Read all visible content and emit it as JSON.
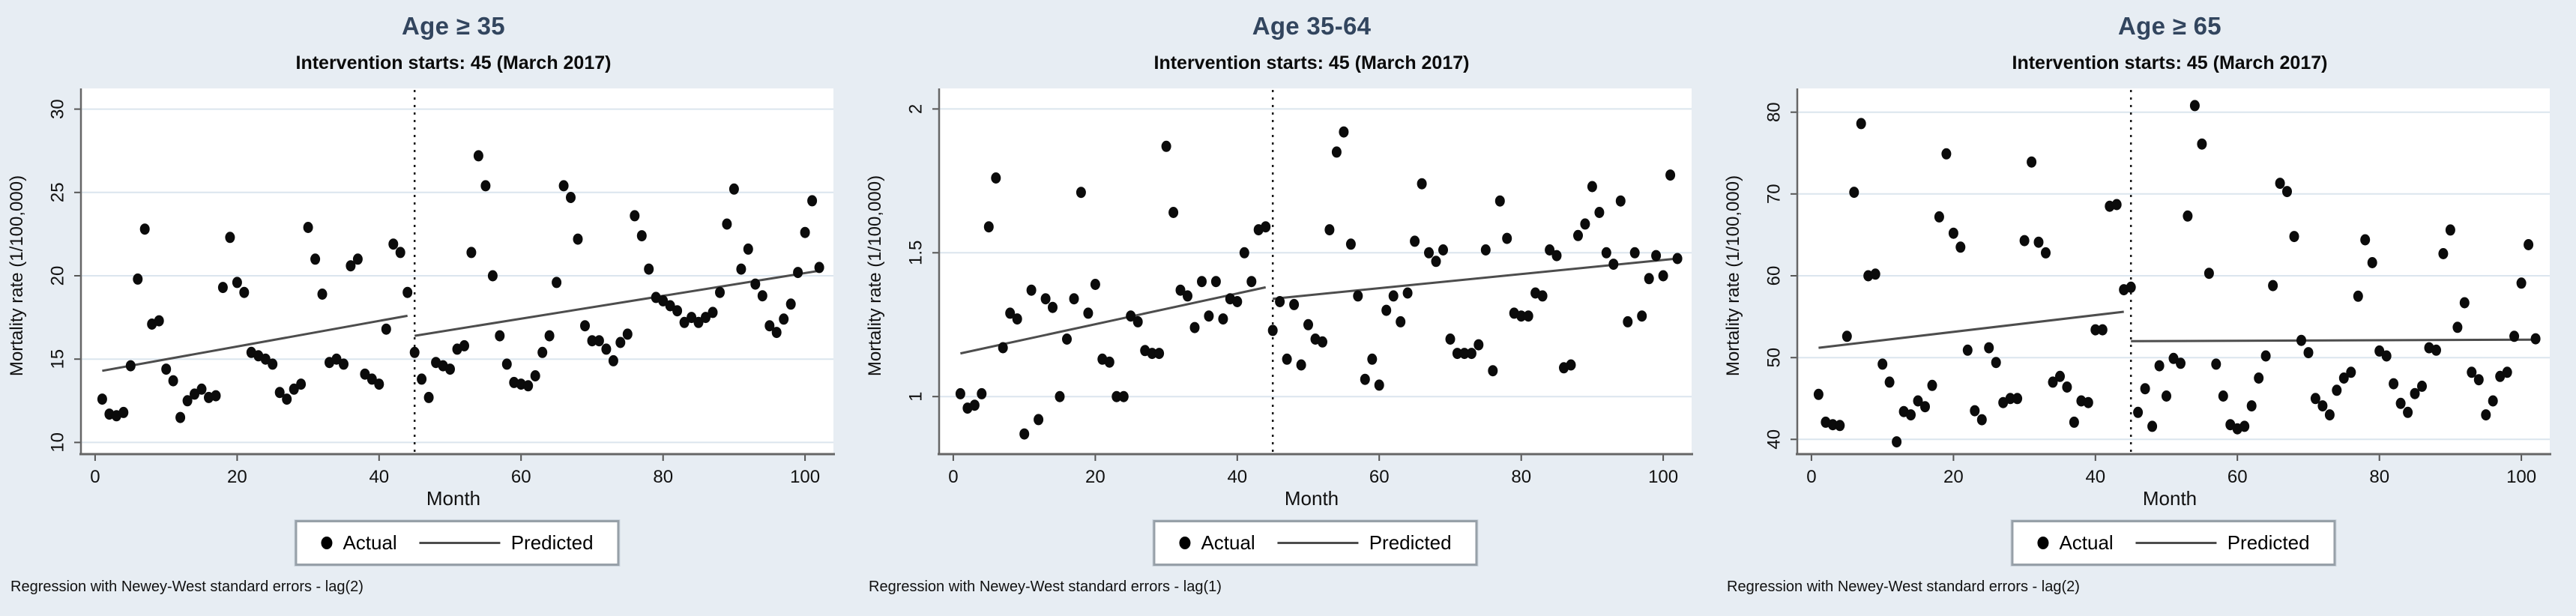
{
  "figure": {
    "background_color": "#e7edf3",
    "title_color": "#32455e",
    "point_color": "#0b0b0b",
    "predicted_line_color": "#4d4d4d",
    "gridline_color": "#dbe5ee"
  },
  "legend": {
    "actual_label": "Actual",
    "predicted_label": "Predicted"
  },
  "chart_data": [
    {
      "type": "scatter",
      "title": "Age ≥ 35",
      "subtitle": "Intervention starts: 45 (March 2017)",
      "note": "Regression with Newey-West standard errors - lag(2)",
      "xlabel": "Month",
      "ylabel": "Mortality rate (1/100,000)",
      "x_ticks": [
        0,
        20,
        40,
        60,
        80,
        100
      ],
      "y_ticks": [
        10,
        15,
        20,
        25,
        30
      ],
      "x_range": [
        -2,
        104
      ],
      "y_range": [
        9.3,
        30.7
      ],
      "grid": "horizontal",
      "legend_position": "bottom-center",
      "intervention_x": 45,
      "series": [
        {
          "name": "Predicted (pre-intervention)",
          "line": [
            [
              1,
              14.3
            ],
            [
              44,
              17.6
            ]
          ]
        },
        {
          "name": "Predicted (post-intervention)",
          "line": [
            [
              45,
              16.4
            ],
            [
              102,
              20.3
            ]
          ]
        }
      ],
      "points": [
        [
          1,
          12.6
        ],
        [
          2,
          11.7
        ],
        [
          3,
          11.6
        ],
        [
          4,
          11.8
        ],
        [
          5,
          14.6
        ],
        [
          6,
          19.8
        ],
        [
          7,
          22.8
        ],
        [
          8,
          17.1
        ],
        [
          9,
          17.3
        ],
        [
          10,
          14.4
        ],
        [
          11,
          13.7
        ],
        [
          12,
          11.5
        ],
        [
          13,
          12.5
        ],
        [
          14,
          12.9
        ],
        [
          15,
          13.2
        ],
        [
          16,
          12.7
        ],
        [
          17,
          12.8
        ],
        [
          18,
          19.3
        ],
        [
          19,
          22.3
        ],
        [
          20,
          19.6
        ],
        [
          21,
          19.0
        ],
        [
          22,
          15.4
        ],
        [
          23,
          15.2
        ],
        [
          24,
          15.0
        ],
        [
          25,
          14.7
        ],
        [
          26,
          13.0
        ],
        [
          27,
          12.6
        ],
        [
          28,
          13.2
        ],
        [
          29,
          13.5
        ],
        [
          30,
          22.9
        ],
        [
          31,
          21.0
        ],
        [
          32,
          18.9
        ],
        [
          33,
          14.8
        ],
        [
          34,
          15.0
        ],
        [
          35,
          14.7
        ],
        [
          36,
          20.6
        ],
        [
          37,
          21.0
        ],
        [
          38,
          14.1
        ],
        [
          39,
          13.8
        ],
        [
          40,
          13.5
        ],
        [
          41,
          16.8
        ],
        [
          42,
          21.9
        ],
        [
          43,
          21.4
        ],
        [
          44,
          19.0
        ],
        [
          45,
          15.4
        ],
        [
          46,
          13.8
        ],
        [
          47,
          12.7
        ],
        [
          48,
          14.8
        ],
        [
          49,
          14.6
        ],
        [
          50,
          14.4
        ],
        [
          51,
          15.6
        ],
        [
          52,
          15.8
        ],
        [
          53,
          21.4
        ],
        [
          54,
          27.2
        ],
        [
          55,
          25.4
        ],
        [
          56,
          20.0
        ],
        [
          57,
          16.4
        ],
        [
          58,
          14.7
        ],
        [
          59,
          13.6
        ],
        [
          60,
          13.5
        ],
        [
          61,
          13.4
        ],
        [
          62,
          14.0
        ],
        [
          63,
          15.4
        ],
        [
          64,
          16.4
        ],
        [
          65,
          19.6
        ],
        [
          66,
          25.4
        ],
        [
          67,
          24.7
        ],
        [
          68,
          22.2
        ],
        [
          69,
          17.0
        ],
        [
          70,
          16.1
        ],
        [
          71,
          16.1
        ],
        [
          72,
          15.6
        ],
        [
          73,
          14.9
        ],
        [
          74,
          16.0
        ],
        [
          75,
          16.5
        ],
        [
          76,
          23.6
        ],
        [
          77,
          22.4
        ],
        [
          78,
          20.4
        ],
        [
          79,
          18.7
        ],
        [
          80,
          18.5
        ],
        [
          81,
          18.2
        ],
        [
          82,
          17.9
        ],
        [
          83,
          17.2
        ],
        [
          84,
          17.5
        ],
        [
          85,
          17.2
        ],
        [
          86,
          17.5
        ],
        [
          87,
          17.8
        ],
        [
          88,
          19.0
        ],
        [
          89,
          23.1
        ],
        [
          90,
          25.2
        ],
        [
          91,
          20.4
        ],
        [
          92,
          21.6
        ],
        [
          93,
          19.5
        ],
        [
          94,
          18.8
        ],
        [
          95,
          17.0
        ],
        [
          96,
          16.6
        ],
        [
          97,
          17.4
        ],
        [
          98,
          18.3
        ],
        [
          99,
          20.2
        ],
        [
          100,
          22.6
        ],
        [
          101,
          24.5
        ],
        [
          102,
          20.5
        ]
      ]
    },
    {
      "type": "scatter",
      "title": "Age 35-64",
      "subtitle": "Intervention starts: 45 (March 2017)",
      "note": "Regression with Newey-West standard errors - lag(1)",
      "xlabel": "Month",
      "ylabel": "Mortality rate (1/100,000)",
      "x_ticks": [
        0,
        20,
        40,
        60,
        80,
        100
      ],
      "y_ticks": [
        1,
        1.5,
        2
      ],
      "x_range": [
        -2,
        104
      ],
      "y_range": [
        0.8,
        2.04
      ],
      "grid": "horizontal",
      "legend_position": "bottom-center",
      "intervention_x": 45,
      "series": [
        {
          "name": "Predicted (pre-intervention)",
          "line": [
            [
              1,
              1.15
            ],
            [
              44,
              1.38
            ]
          ]
        },
        {
          "name": "Predicted (post-intervention)",
          "line": [
            [
              45,
              1.34
            ],
            [
              102,
              1.48
            ]
          ]
        }
      ],
      "points": [
        [
          1,
          1.01
        ],
        [
          2,
          0.96
        ],
        [
          3,
          0.97
        ],
        [
          4,
          1.01
        ],
        [
          5,
          1.59
        ],
        [
          6,
          1.76
        ],
        [
          7,
          1.17
        ],
        [
          8,
          1.29
        ],
        [
          9,
          1.27
        ],
        [
          10,
          0.87
        ],
        [
          11,
          1.37
        ],
        [
          12,
          0.92
        ],
        [
          13,
          1.34
        ],
        [
          14,
          1.31
        ],
        [
          15,
          1.0
        ],
        [
          16,
          1.2
        ],
        [
          17,
          1.34
        ],
        [
          18,
          1.71
        ],
        [
          19,
          1.29
        ],
        [
          20,
          1.39
        ],
        [
          21,
          1.13
        ],
        [
          22,
          1.12
        ],
        [
          23,
          1.0
        ],
        [
          24,
          1.0
        ],
        [
          25,
          1.28
        ],
        [
          26,
          1.26
        ],
        [
          27,
          1.16
        ],
        [
          28,
          1.15
        ],
        [
          29,
          1.15
        ],
        [
          30,
          1.87
        ],
        [
          31,
          1.64
        ],
        [
          32,
          1.37
        ],
        [
          33,
          1.35
        ],
        [
          34,
          1.24
        ],
        [
          35,
          1.4
        ],
        [
          36,
          1.28
        ],
        [
          37,
          1.4
        ],
        [
          38,
          1.27
        ],
        [
          39,
          1.34
        ],
        [
          40,
          1.33
        ],
        [
          41,
          1.5
        ],
        [
          42,
          1.4
        ],
        [
          43,
          1.58
        ],
        [
          44,
          1.59
        ],
        [
          45,
          1.23
        ],
        [
          46,
          1.33
        ],
        [
          47,
          1.13
        ],
        [
          48,
          1.32
        ],
        [
          49,
          1.11
        ],
        [
          50,
          1.25
        ],
        [
          51,
          1.2
        ],
        [
          52,
          1.19
        ],
        [
          53,
          1.58
        ],
        [
          54,
          1.85
        ],
        [
          55,
          1.92
        ],
        [
          56,
          1.53
        ],
        [
          57,
          1.35
        ],
        [
          58,
          1.06
        ],
        [
          59,
          1.13
        ],
        [
          60,
          1.04
        ],
        [
          61,
          1.3
        ],
        [
          62,
          1.35
        ],
        [
          63,
          1.26
        ],
        [
          64,
          1.36
        ],
        [
          65,
          1.54
        ],
        [
          66,
          1.74
        ],
        [
          67,
          1.5
        ],
        [
          68,
          1.47
        ],
        [
          69,
          1.51
        ],
        [
          70,
          1.2
        ],
        [
          71,
          1.15
        ],
        [
          72,
          1.15
        ],
        [
          73,
          1.15
        ],
        [
          74,
          1.18
        ],
        [
          75,
          1.51
        ],
        [
          76,
          1.09
        ],
        [
          77,
          1.68
        ],
        [
          78,
          1.55
        ],
        [
          79,
          1.29
        ],
        [
          80,
          1.28
        ],
        [
          81,
          1.28
        ],
        [
          82,
          1.36
        ],
        [
          83,
          1.35
        ],
        [
          84,
          1.51
        ],
        [
          85,
          1.49
        ],
        [
          86,
          1.1
        ],
        [
          87,
          1.11
        ],
        [
          88,
          1.56
        ],
        [
          89,
          1.6
        ],
        [
          90,
          1.73
        ],
        [
          91,
          1.64
        ],
        [
          92,
          1.5
        ],
        [
          93,
          1.46
        ],
        [
          94,
          1.68
        ],
        [
          95,
          1.26
        ],
        [
          96,
          1.5
        ],
        [
          97,
          1.28
        ],
        [
          98,
          1.41
        ],
        [
          99,
          1.49
        ],
        [
          100,
          1.42
        ],
        [
          101,
          1.77
        ],
        [
          102,
          1.48
        ]
      ]
    },
    {
      "type": "scatter",
      "title": "Age ≥ 65",
      "subtitle": "Intervention starts: 45 (March 2017)",
      "note": "Regression with Newey-West standard errors - lag(2)",
      "xlabel": "Month",
      "ylabel": "Mortality rate (1/100,000)",
      "x_ticks": [
        0,
        20,
        40,
        60,
        80,
        100
      ],
      "y_ticks": [
        40,
        50,
        60,
        70,
        80
      ],
      "x_range": [
        -2,
        104
      ],
      "y_range": [
        38.2,
        81.8
      ],
      "grid": "horizontal",
      "legend_position": "bottom-center",
      "intervention_x": 45,
      "series": [
        {
          "name": "Predicted (pre-intervention)",
          "line": [
            [
              1,
              51.2
            ],
            [
              44,
              55.6
            ]
          ]
        },
        {
          "name": "Predicted (post-intervention)",
          "line": [
            [
              45,
              52.0
            ],
            [
              102,
              52.2
            ]
          ]
        }
      ],
      "points": [
        [
          1,
          45.5
        ],
        [
          2,
          42.1
        ],
        [
          3,
          41.8
        ],
        [
          4,
          41.7
        ],
        [
          5,
          52.6
        ],
        [
          6,
          70.2
        ],
        [
          7,
          78.6
        ],
        [
          8,
          60.0
        ],
        [
          9,
          60.2
        ],
        [
          10,
          49.2
        ],
        [
          11,
          47.0
        ],
        [
          12,
          39.7
        ],
        [
          13,
          43.4
        ],
        [
          14,
          43.0
        ],
        [
          15,
          44.7
        ],
        [
          16,
          44.0
        ],
        [
          17,
          46.6
        ],
        [
          18,
          67.2
        ],
        [
          19,
          74.9
        ],
        [
          20,
          65.2
        ],
        [
          21,
          63.5
        ],
        [
          22,
          50.9
        ],
        [
          23,
          43.5
        ],
        [
          24,
          42.4
        ],
        [
          25,
          51.2
        ],
        [
          26,
          49.4
        ],
        [
          27,
          44.5
        ],
        [
          28,
          45.0
        ],
        [
          29,
          45.0
        ],
        [
          30,
          64.3
        ],
        [
          31,
          73.9
        ],
        [
          32,
          64.1
        ],
        [
          33,
          62.8
        ],
        [
          34,
          47.0
        ],
        [
          35,
          47.7
        ],
        [
          36,
          46.4
        ],
        [
          37,
          42.1
        ],
        [
          38,
          44.7
        ],
        [
          39,
          44.5
        ],
        [
          40,
          53.4
        ],
        [
          41,
          53.4
        ],
        [
          42,
          68.5
        ],
        [
          43,
          68.7
        ],
        [
          44,
          58.3
        ],
        [
          45,
          58.6
        ],
        [
          46,
          43.3
        ],
        [
          47,
          46.2
        ],
        [
          48,
          41.6
        ],
        [
          49,
          49.0
        ],
        [
          50,
          45.3
        ],
        [
          51,
          49.9
        ],
        [
          52,
          49.3
        ],
        [
          53,
          67.3
        ],
        [
          54,
          80.8
        ],
        [
          55,
          76.1
        ],
        [
          56,
          60.3
        ],
        [
          57,
          49.2
        ],
        [
          58,
          45.3
        ],
        [
          59,
          41.8
        ],
        [
          60,
          41.3
        ],
        [
          61,
          41.6
        ],
        [
          62,
          44.1
        ],
        [
          63,
          47.5
        ],
        [
          64,
          50.2
        ],
        [
          65,
          58.8
        ],
        [
          66,
          71.3
        ],
        [
          67,
          70.3
        ],
        [
          68,
          64.8
        ],
        [
          69,
          52.1
        ],
        [
          70,
          50.6
        ],
        [
          71,
          45.0
        ],
        [
          72,
          44.1
        ],
        [
          73,
          43.0
        ],
        [
          74,
          46.0
        ],
        [
          75,
          47.5
        ],
        [
          76,
          48.2
        ],
        [
          77,
          57.5
        ],
        [
          78,
          64.4
        ],
        [
          79,
          61.6
        ],
        [
          80,
          50.8
        ],
        [
          81,
          50.2
        ],
        [
          82,
          46.8
        ],
        [
          83,
          44.4
        ],
        [
          84,
          43.3
        ],
        [
          85,
          45.6
        ],
        [
          86,
          46.5
        ],
        [
          87,
          51.2
        ],
        [
          88,
          50.9
        ],
        [
          89,
          62.7
        ],
        [
          90,
          65.6
        ],
        [
          91,
          53.7
        ],
        [
          92,
          56.7
        ],
        [
          93,
          48.2
        ],
        [
          94,
          47.3
        ],
        [
          95,
          43.0
        ],
        [
          96,
          44.7
        ],
        [
          97,
          47.7
        ],
        [
          98,
          48.2
        ],
        [
          99,
          52.6
        ],
        [
          100,
          59.1
        ],
        [
          101,
          63.8
        ],
        [
          102,
          52.3
        ]
      ]
    }
  ]
}
